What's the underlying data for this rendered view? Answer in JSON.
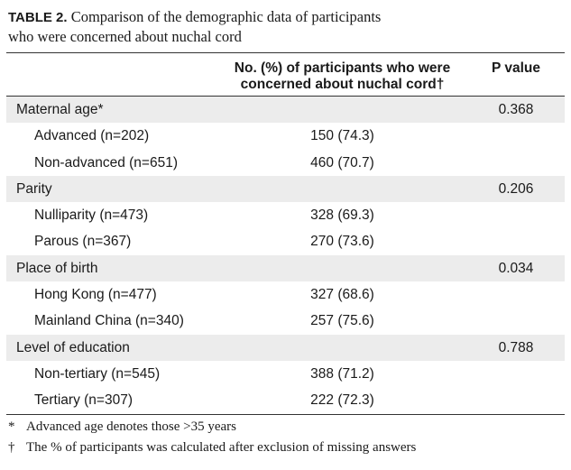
{
  "caption": {
    "label": "TABLE 2.",
    "text_line1": " Comparison of the demographic data of participants",
    "text_line2": "who were concerned about nuchal cord"
  },
  "table": {
    "headers": {
      "col1": "",
      "col2_line1": "No. (%) of participants who were",
      "col2_line2": "concerned about nuchal cord†",
      "col3": "P value"
    },
    "rows": [
      {
        "type": "group",
        "label": "Maternal age*",
        "value": "",
        "p": "0.368"
      },
      {
        "type": "sub",
        "label": "Advanced (n=202)",
        "value": "150 (74.3)",
        "p": ""
      },
      {
        "type": "sub",
        "label": "Non-advanced (n=651)",
        "value": "460 (70.7)",
        "p": ""
      },
      {
        "type": "group",
        "label": "Parity",
        "value": "",
        "p": "0.206"
      },
      {
        "type": "sub",
        "label": "Nulliparity (n=473)",
        "value": "328 (69.3)",
        "p": ""
      },
      {
        "type": "sub",
        "label": "Parous (n=367)",
        "value": "270 (73.6)",
        "p": ""
      },
      {
        "type": "group",
        "label": "Place of birth",
        "value": "",
        "p": "0.034"
      },
      {
        "type": "sub",
        "label": "Hong Kong (n=477)",
        "value": "327 (68.6)",
        "p": ""
      },
      {
        "type": "sub",
        "label": "Mainland China (n=340)",
        "value": "257 (75.6)",
        "p": ""
      },
      {
        "type": "group",
        "label": "Level of education",
        "value": "",
        "p": "0.788"
      },
      {
        "type": "sub",
        "label": "Non-tertiary (n=545)",
        "value": "388 (71.2)",
        "p": ""
      },
      {
        "type": "sub",
        "label": "Tertiary (n=307)",
        "value": "222 (72.3)",
        "p": ""
      }
    ]
  },
  "footnotes": [
    {
      "symbol": "*",
      "text": "Advanced age denotes those >35 years"
    },
    {
      "symbol": "†",
      "text": "The % of participants was calculated after exclusion of missing answers"
    }
  ]
}
